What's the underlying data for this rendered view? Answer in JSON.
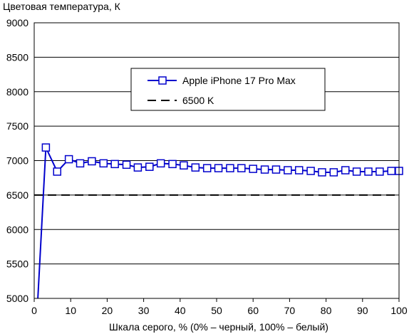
{
  "chart_data": {
    "type": "line",
    "title": "",
    "ylabel": "Цветовая температура, К",
    "xlabel": "Шкала серого, % (0% – черный, 100% – белый)",
    "xlim": [
      0,
      100
    ],
    "ylim": [
      5000,
      9000
    ],
    "xticks": [
      0,
      10,
      20,
      30,
      40,
      50,
      60,
      70,
      80,
      90,
      100
    ],
    "yticks": [
      5000,
      5500,
      6000,
      6500,
      7000,
      7500,
      8000,
      8500,
      9000
    ],
    "xtick_labels": [
      "0",
      "10",
      "20",
      "30",
      "40",
      "50",
      "60",
      "70",
      "80",
      "90",
      "100"
    ],
    "ytick_labels": [
      "5000",
      "5500",
      "6000",
      "6500",
      "7000",
      "7500",
      "8000",
      "8500",
      "9000"
    ],
    "grid": "horizontal",
    "legend_position": "top-center",
    "series": [
      {
        "name": "Apple iPhone 17 Pro Max",
        "color": "#0000cc",
        "marker": "square",
        "x": [
          1.0,
          3.2,
          6.3,
          9.5,
          12.6,
          15.8,
          19.0,
          22.1,
          25.3,
          28.4,
          31.6,
          34.7,
          37.9,
          41.0,
          44.2,
          47.4,
          50.5,
          53.7,
          56.8,
          60.0,
          63.2,
          66.3,
          69.5,
          72.6,
          75.8,
          78.9,
          82.1,
          85.3,
          88.4,
          91.6,
          94.7,
          97.9,
          100.0
        ],
        "y": [
          5000,
          7190,
          6840,
          7020,
          6960,
          6990,
          6960,
          6950,
          6940,
          6900,
          6910,
          6960,
          6950,
          6930,
          6900,
          6890,
          6890,
          6890,
          6890,
          6880,
          6870,
          6870,
          6860,
          6860,
          6850,
          6830,
          6830,
          6860,
          6840,
          6840,
          6840,
          6850,
          6850
        ],
        "marker_start_index": 1
      },
      {
        "name": "6500 K",
        "color": "#000000",
        "style": "dashed",
        "x": [
          0,
          100
        ],
        "y": [
          6500,
          6500
        ]
      }
    ]
  }
}
